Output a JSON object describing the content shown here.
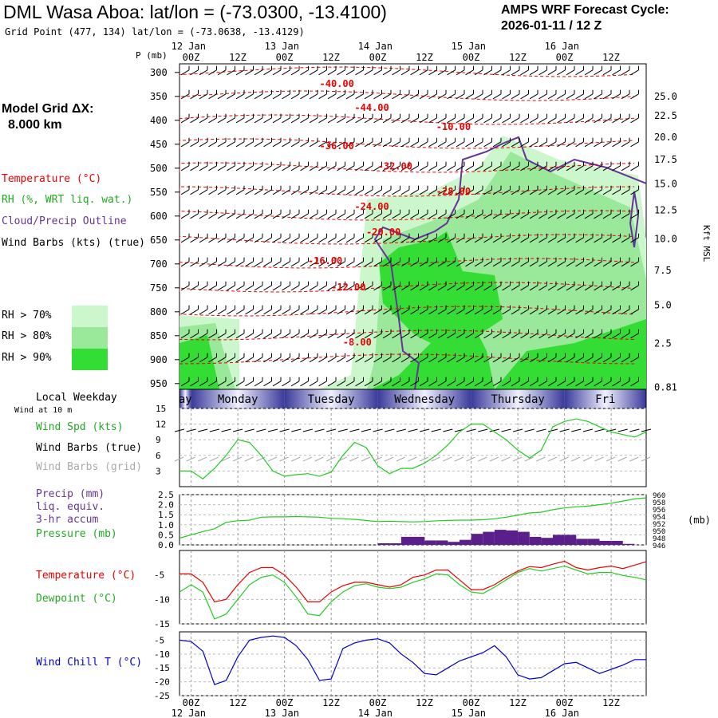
{
  "header": {
    "title": "DML Wasa Aboa:  lat/lon = (-73.0300, -13.4100)",
    "grid_point": "Grid Point (477, 134) lat/lon = (-73.0638, -13.4129)",
    "cycle_line1": "AMPS WRF Forecast Cycle:",
    "cycle_line2": "2026-01-11 / 12  Z"
  },
  "legend": {
    "model_grid_1": "Model Grid ΔX:",
    "model_grid_2": "8.000 km",
    "temperature": "Temperature (°C)",
    "rh": "RH (%, WRT liq. wat.)",
    "cloud": "Cloud/Precip Outline",
    "wind_barbs": "Wind Barbs (kts) (true)",
    "rh70": "RH > 70%",
    "rh80": "RH > 80%",
    "rh90": "RH > 90%",
    "local_weekday": "Local Weekday",
    "wind_10m": "Wind at 10 m",
    "wind_spd": "Wind Spd (kts)",
    "wind_barbs_true": "Wind Barbs (true)",
    "wind_barbs_grid": "Wind Barbs (grid)",
    "precip_1": "Precip (mm)",
    "precip_2": "liq. equiv.",
    "precip_3": "3-hr accum",
    "pressure": "Pressure (mb)",
    "temp2": "Temperature (°C)",
    "dewpoint": "Dewpoint (°C)",
    "windchill": "Wind Chill T (°C)"
  },
  "colors": {
    "rh70": "#ccf7cc",
    "rh80": "#9ae89a",
    "rh90": "#33dd33",
    "temp": "#ee0000",
    "dew": "#22cc22",
    "cloud": "#663399",
    "precip": "#5a1f8a",
    "chill": "#0000cc",
    "gray": "#aaaaaa"
  },
  "chart_data": {
    "type": "meteogram",
    "time_ticks": {
      "hours": [
        "00Z",
        "12Z",
        "00Z",
        "12Z",
        "00Z",
        "12Z",
        "00Z",
        "12Z",
        "00Z",
        "12Z"
      ],
      "dates": [
        "12 Jan",
        "13 Jan",
        "14 Jan",
        "15 Jan",
        "16 Jan"
      ],
      "start_hours": -3,
      "end_hours": 117
    },
    "days": {
      "labels": [
        "ay",
        "Monday",
        "Tuesday",
        "Wednesday",
        "Thursday",
        "Fri"
      ]
    },
    "cross_section": {
      "p_axis_label": "P (mb)",
      "pressure_levels": [
        300,
        350,
        400,
        450,
        500,
        550,
        600,
        650,
        700,
        750,
        800,
        850,
        900,
        950
      ],
      "height_axis_label": "Kft MSL",
      "height_labels": [
        {
          "kft": "25.0",
          "p": 350
        },
        {
          "kft": "22.5",
          "p": 390
        },
        {
          "kft": "20.0",
          "p": 435
        },
        {
          "kft": "17.5",
          "p": 482
        },
        {
          "kft": "15.0",
          "p": 533
        },
        {
          "kft": "12.5",
          "p": 588
        },
        {
          "kft": "10.0",
          "p": 648
        },
        {
          "kft": "7.5",
          "p": 714
        },
        {
          "kft": "5.0",
          "p": 786
        },
        {
          "kft": "2.5",
          "p": 866
        },
        {
          "kft": "0.81",
          "p": 958
        }
      ],
      "temp_labels": [
        {
          "text": "-40.00",
          "h": 33,
          "p": 330
        },
        {
          "text": "-44.00",
          "h": 42,
          "p": 380
        },
        {
          "text": "-10.00",
          "h": 63,
          "p": 420
        },
        {
          "text": "-36.00",
          "h": 33,
          "p": 460
        },
        {
          "text": "-32.00",
          "h": 48,
          "p": 503
        },
        {
          "text": "-28.00",
          "h": 63,
          "p": 555
        },
        {
          "text": "-24.00",
          "h": 42,
          "p": 587
        },
        {
          "text": "-20.00",
          "h": 45,
          "p": 640
        },
        {
          "text": "-16.00",
          "h": 30,
          "p": 700
        },
        {
          "text": "-12.00",
          "h": 36,
          "p": 755
        },
        {
          "text": "-8.00",
          "h": 39,
          "p": 870
        }
      ]
    },
    "wind_speed": {
      "ylim": [
        0,
        15
      ],
      "yticks": [
        3,
        6,
        9,
        12,
        15
      ],
      "times_h": [
        -3,
        0,
        3,
        6,
        9,
        12,
        15,
        18,
        21,
        24,
        27,
        30,
        33,
        36,
        39,
        42,
        45,
        48,
        51,
        54,
        57,
        60,
        63,
        66,
        69,
        72,
        75,
        78,
        81,
        84,
        87,
        90,
        93,
        96,
        99,
        102,
        105,
        108,
        111,
        114,
        117
      ],
      "values": [
        3,
        3,
        1.5,
        3.5,
        6,
        9,
        8.5,
        6,
        3,
        2,
        2.3,
        2.5,
        2,
        2.8,
        6,
        8.5,
        7.5,
        4,
        2.5,
        3.5,
        3.5,
        4.5,
        6,
        8,
        10.5,
        12,
        12,
        10.5,
        9,
        7,
        5.5,
        7,
        11.5,
        12.5,
        13,
        12.5,
        11.5,
        10.5,
        10,
        9.5,
        10.5
      ]
    },
    "pressure": {
      "ylim_mb": [
        946,
        960
      ],
      "yticks_mb": [
        946,
        948,
        950,
        952,
        954,
        956,
        958,
        960
      ],
      "times_h": [
        -3,
        0,
        3,
        6,
        9,
        12,
        15,
        18,
        21,
        24,
        27,
        30,
        33,
        36,
        39,
        42,
        45,
        48,
        51,
        54,
        57,
        60,
        63,
        66,
        69,
        72,
        75,
        78,
        81,
        84,
        87,
        90,
        93,
        96,
        99,
        102,
        105,
        108,
        111,
        114,
        117
      ],
      "values": [
        947.9,
        948.8,
        949.7,
        950.5,
        952.3,
        952.7,
        952.9,
        953.7,
        953.8,
        953.8,
        953.9,
        953.8,
        953.7,
        953.4,
        953.3,
        953.1,
        952.8,
        952.5,
        952.6,
        952.5,
        952.4,
        952.5,
        952.7,
        952.8,
        952.9,
        952.9,
        953,
        953.3,
        953.7,
        954.3,
        954.9,
        955.1,
        955.8,
        956.3,
        956.6,
        956.8,
        957.2,
        957.6,
        958.2,
        958.8,
        959.1
      ]
    },
    "precip": {
      "ylim_mm": [
        0,
        2.5
      ],
      "yticks_mm": [
        "0.0",
        "0.5",
        "1.0",
        "1.5",
        "2.0",
        "2.5"
      ],
      "bars": [
        {
          "t": 51,
          "v": 0.08
        },
        {
          "t": 54,
          "v": 0.08
        },
        {
          "t": 57,
          "v": 0.4
        },
        {
          "t": 60,
          "v": 0.4
        },
        {
          "t": 63,
          "v": 0.22
        },
        {
          "t": 66,
          "v": 0.22
        },
        {
          "t": 69,
          "v": 0.15
        },
        {
          "t": 72,
          "v": 0.25
        },
        {
          "t": 75,
          "v": 0.55
        },
        {
          "t": 78,
          "v": 0.65
        },
        {
          "t": 81,
          "v": 0.75
        },
        {
          "t": 84,
          "v": 0.72
        },
        {
          "t": 87,
          "v": 0.65
        },
        {
          "t": 90,
          "v": 0.4
        },
        {
          "t": 93,
          "v": 0.35
        },
        {
          "t": 96,
          "v": 0.5
        },
        {
          "t": 99,
          "v": 0.5
        },
        {
          "t": 102,
          "v": 0.3
        },
        {
          "t": 105,
          "v": 0.3
        },
        {
          "t": 108,
          "v": 0.2
        },
        {
          "t": 111,
          "v": 0.2
        },
        {
          "t": 114,
          "v": 0.05
        }
      ]
    },
    "temperature": {
      "ylim": [
        -15,
        0
      ],
      "yticks": [
        -5,
        -10,
        -15
      ],
      "times_h": [
        -3,
        0,
        3,
        6,
        9,
        12,
        15,
        18,
        21,
        24,
        27,
        30,
        33,
        36,
        39,
        42,
        45,
        48,
        51,
        54,
        57,
        60,
        63,
        66,
        69,
        72,
        75,
        78,
        81,
        84,
        87,
        90,
        93,
        96,
        99,
        102,
        105,
        108,
        111,
        114,
        117
      ],
      "temp": [
        -4.8,
        -4.8,
        -6.5,
        -10.5,
        -10,
        -7,
        -4.5,
        -3.5,
        -3.5,
        -5,
        -7.5,
        -10.5,
        -10.5,
        -8.5,
        -7.2,
        -6.5,
        -6.5,
        -7,
        -7.5,
        -7,
        -5.5,
        -5,
        -4,
        -4,
        -6,
        -8,
        -8,
        -7,
        -5.5,
        -4.2,
        -3.3,
        -3.5,
        -2.8,
        -2.2,
        -3.5,
        -4,
        -3.5,
        -3.2,
        -3.7,
        -3,
        -2.3
      ],
      "dew": [
        -8.5,
        -7,
        -8.5,
        -14,
        -13,
        -10,
        -7,
        -5.5,
        -5,
        -6.5,
        -9.5,
        -13,
        -13.3,
        -10.5,
        -8.5,
        -7.2,
        -6.8,
        -7.5,
        -7.8,
        -7.5,
        -6.5,
        -5.8,
        -4.8,
        -5,
        -7,
        -8.5,
        -8.8,
        -7.5,
        -6,
        -4.5,
        -3.7,
        -4.2,
        -3.7,
        -3.2,
        -4,
        -4.8,
        -4.5,
        -4.5,
        -5.1,
        -5.5,
        -6
      ]
    },
    "wind_chill": {
      "ylim": [
        -25,
        -2
      ],
      "yticks": [
        -5,
        -10,
        -15,
        -20,
        -25
      ],
      "times_h": [
        -3,
        0,
        3,
        6,
        9,
        12,
        15,
        18,
        21,
        24,
        27,
        30,
        33,
        36,
        39,
        42,
        45,
        48,
        51,
        54,
        57,
        60,
        63,
        66,
        69,
        72,
        75,
        78,
        81,
        84,
        87,
        90,
        93,
        96,
        99,
        102,
        105,
        108,
        111,
        114,
        117
      ],
      "values": [
        -5,
        -5.5,
        -9,
        -21,
        -19.5,
        -11,
        -5,
        -4,
        -3.5,
        -4,
        -7,
        -12,
        -19.5,
        -19,
        -8,
        -6,
        -5,
        -4.5,
        -6,
        -10,
        -13,
        -17,
        -17.5,
        -15,
        -12.5,
        -11,
        -9.5,
        -7,
        -11,
        -17.5,
        -19,
        -18.5,
        -16,
        -13.5,
        -13,
        -15,
        -17,
        -15.5,
        -14,
        -12,
        -12
      ]
    }
  }
}
